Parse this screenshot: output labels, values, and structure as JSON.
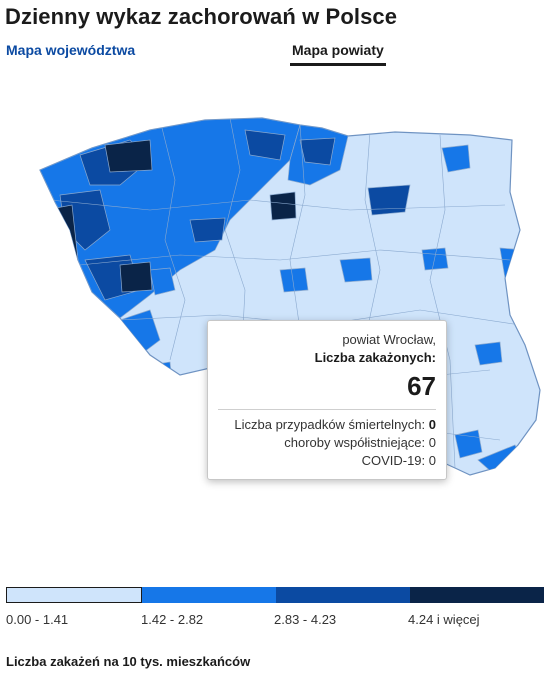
{
  "header": {
    "title": "Dzienny wykaz zachorowań w Polsce"
  },
  "tabs": [
    {
      "label": "Mapa województwa",
      "active": false
    },
    {
      "label": "Mapa powiaty",
      "active": true
    }
  ],
  "colors": {
    "level1": "#cfe4fb",
    "level2": "#1677e8",
    "level3": "#0b4aa2",
    "level4": "#0a2448",
    "border": "#8aa9cf"
  },
  "tooltip": {
    "county": "powiat Wrocław,",
    "cases_label": "Liczba zakażonych:",
    "cases_value": "67",
    "deaths_label": "Liczba przypadków śmiertelnych:",
    "deaths_value": "0",
    "comorbid_label": "choroby współistniejące:",
    "comorbid_value": "0",
    "covid_label": "COVID-19:",
    "covid_value": "0"
  },
  "legend": {
    "ranges": [
      "0.00 - 1.41",
      "1.42 - 2.82",
      "2.83 - 4.23",
      "4.24 i więcej"
    ],
    "caption": "Liczba zakażeń na 10 tys. mieszkańców"
  }
}
